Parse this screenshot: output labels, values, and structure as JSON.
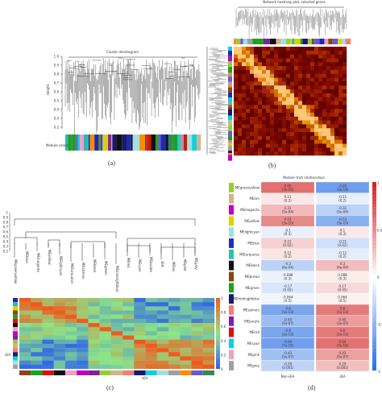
{
  "panel_a": {
    "title": "Cluster dendrogram",
    "ylabel": "Height",
    "yticks": [
      "1.0",
      "0.9",
      "0.8",
      "0.7",
      "0.6",
      "0.5",
      "0.4",
      "0.3",
      "0.2"
    ],
    "strip_label": "Module colors",
    "caption": "(a)"
  },
  "panel_b": {
    "title": "Network heatmap plot, selected genes",
    "caption": "(b)"
  },
  "panel_c": {
    "yticks": [
      "1",
      "0.9",
      "0.8",
      "0.7",
      "0.6",
      "0.5",
      "0.4",
      "0.3",
      "0.2"
    ],
    "leaves": [
      "MEgreenyellow",
      "MEblue",
      "MEmagenta",
      "MEyellow",
      "MElightcyan",
      "MEturquoise",
      "MEsalmon",
      "MEblack",
      "MEgreen",
      "MEmidnightblue",
      "MEred",
      "MEcyan",
      "MEpurple",
      "sEA",
      "MEtan",
      "MEpink",
      "MEgrey"
    ],
    "heat_label": "sEA",
    "bottom_label": "sEA",
    "scale": [
      "1",
      "0.8",
      "0.6",
      "0.4",
      "0.2",
      "0"
    ],
    "caption": "(c)"
  },
  "panel_d": {
    "title": "Module–trait relationships",
    "x_labels": [
      "Non-sEA",
      "sEA"
    ],
    "scale": [
      "1",
      "0.5",
      "0",
      "-0.5",
      "-1"
    ],
    "caption": "(d)",
    "rows": [
      {
        "name": "MEgreenyellow",
        "c1": "0.65\n(3e-16)",
        "c2": "-0.65\n(3e-16)",
        "color": "#9acd32",
        "v": 0.65
      },
      {
        "name": "MEtan",
        "c1": "0.11\n(0.2)",
        "c2": "-0.11\n(0.2)",
        "color": "#d2b48c",
        "v": 0.11
      },
      {
        "name": "MEmagenta",
        "c1": "0.31\n(5e-04)",
        "c2": "-0.31\n(5e-04)",
        "color": "#c000c0",
        "v": 0.31
      },
      {
        "name": "MEyellow",
        "c1": "0.53\n(3e-10)",
        "c2": "-0.53\n(3e-10)",
        "color": "#e0d000",
        "v": 0.53
      },
      {
        "name": "MElightcyan",
        "c1": "-0.1\n(0.3)",
        "c2": "0.1\n(0.3)",
        "color": "#a0e0e0",
        "v": -0.1
      },
      {
        "name": "MEblue",
        "c1": "0.21\n(0.02)",
        "c2": "-0.21\n(0.02)",
        "color": "#2030c0",
        "v": 0.21
      },
      {
        "name": "MEturquoise",
        "c1": "0.12\n(0.2)",
        "c2": "-0.12\n(0.2)",
        "color": "#30c0b0",
        "v": 0.12
      },
      {
        "name": "MEblack",
        "c1": "-0.3\n(6e-04)",
        "c2": "0.3\n(6e-04)",
        "color": "#111111",
        "v": -0.3
      },
      {
        "name": "MEbrown",
        "c1": "-0.088\n(0.3)",
        "c2": "0.088\n(0.3)",
        "color": "#8b4513",
        "v": -0.088
      },
      {
        "name": "MEgreen",
        "c1": "-0.17\n(0.05)",
        "c2": "0.17\n(0.05)",
        "color": "#20a020",
        "v": -0.17
      },
      {
        "name": "MEmidnightblue",
        "c1": "-0.064\n(0.5)",
        "c2": "0.064\n(0.5)",
        "color": "#191970",
        "v": -0.064
      },
      {
        "name": "MEsalmon",
        "c1": "-0.6\n(1e-13)",
        "c2": "0.6\n(1e-13)",
        "color": "#f08070",
        "v": -0.6
      },
      {
        "name": "MEpurple",
        "c1": "-0.45\n(1e-07)",
        "c2": "0.45\n(1e-07)",
        "color": "#8020a0",
        "v": -0.45
      },
      {
        "name": "MEred",
        "c1": "-0.6\n(2e-13)",
        "c2": "0.6\n(2e-13)",
        "color": "#e01010",
        "v": -0.6
      },
      {
        "name": "MEcyan",
        "c1": "-0.64\n(7e-16)",
        "c2": "0.64\n(7e-16)",
        "color": "#10d0e0",
        "v": -0.64
      },
      {
        "name": "MEpink",
        "c1": "-0.43\n(5e-07)",
        "c2": "0.43\n(5e-07)",
        "color": "#f0a0c0",
        "v": -0.43
      },
      {
        "name": "MEgrey",
        "c1": "-0.29\n(0.001)",
        "c2": "0.29\n(0.001)",
        "color": "#a0a0a0",
        "v": -0.29
      }
    ]
  }
}
